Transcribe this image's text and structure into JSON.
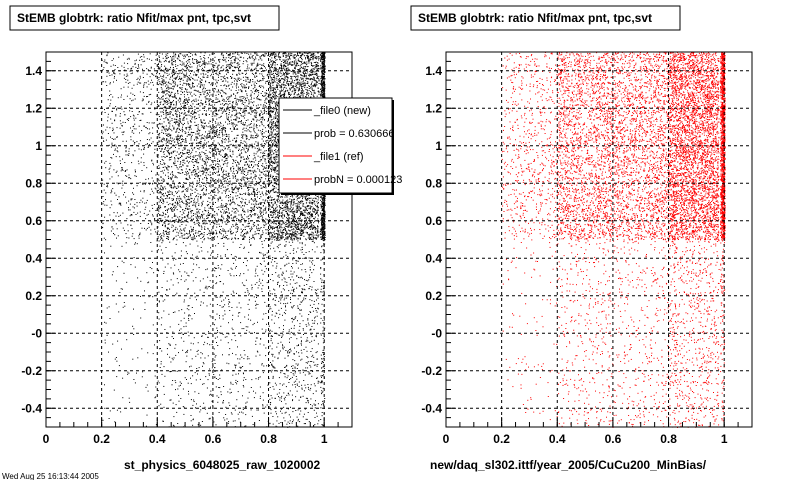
{
  "chart_data": [
    {
      "type": "scatter",
      "title": "StEMB globtrk: ratio Nfit/max pnt, tpc,svt",
      "xlabel": "st_physics_6048025_raw_1020002",
      "ylabel": "",
      "xlim": [
        0,
        1.1
      ],
      "ylim": [
        -0.5,
        1.5
      ],
      "x_ticks": [
        "0",
        "0.2",
        "0.4",
        "0.6",
        "0.8",
        "1"
      ],
      "y_ticks": [
        "-0.4",
        "-0.2",
        "-0",
        "0.2",
        "0.4",
        "0.6",
        "0.8",
        "1",
        "1.2",
        "1.4"
      ],
      "grid": true,
      "marker_color": "#000000",
      "legend": {
        "placement": "top-right",
        "entries": [
          {
            "label": "_file0 (new)",
            "color": "#000000"
          },
          {
            "label": "prob = 0.630666",
            "color": "#000000"
          },
          {
            "label": "_file1 (ref)",
            "color": "#ff0000"
          },
          {
            "label": "probN = 0.000123",
            "color": "#ff0000"
          }
        ]
      },
      "series": [
        {
          "name": "_file0 (new)",
          "density_note": "dense for y>=0.5, sparse for y<0.5; x concentrated 0.4-1.0, heavy near 0.8-1.0"
        }
      ]
    },
    {
      "type": "scatter",
      "title": "StEMB globtrk: ratio Nfit/max pnt, tpc,svt",
      "xlabel": "new/daq_sl302.ittf/year_2005/CuCu200_MinBias/",
      "ylabel": "",
      "xlim": [
        0,
        1.1
      ],
      "ylim": [
        -0.5,
        1.5
      ],
      "x_ticks": [
        "0",
        "0.2",
        "0.4",
        "0.6",
        "0.8",
        "1"
      ],
      "y_ticks": [
        "-0.4",
        "-0.2",
        "-0",
        "0.2",
        "0.4",
        "0.6",
        "0.8",
        "1",
        "1.2",
        "1.4"
      ],
      "grid": true,
      "marker_color": "#ff0000",
      "series": [
        {
          "name": "_file1 (ref)",
          "density_note": "dense for y>=0.5, sparse for y<0.5; x concentrated 0.4-1.0, heavy near 0.8-1.0"
        }
      ]
    }
  ],
  "footer_text": "Wed Aug 25 16:13:44 2005"
}
